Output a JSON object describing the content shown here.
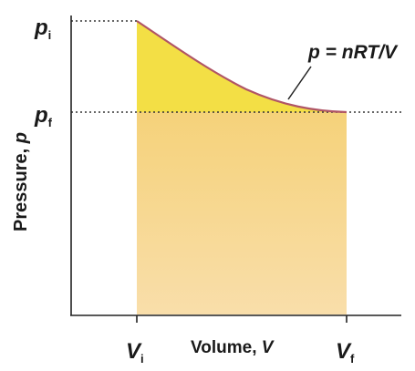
{
  "diagram": {
    "type": "pV isothermal expansion",
    "y_axis_label": {
      "text": "Pressure, ",
      "var": "p"
    },
    "x_axis_label": {
      "text": "Volume, ",
      "var": "V"
    },
    "y_ticks": [
      {
        "var": "p",
        "sub": "i"
      },
      {
        "var": "p",
        "sub": "f"
      }
    ],
    "x_ticks": [
      {
        "var": "V",
        "sub": "i"
      },
      {
        "var": "V",
        "sub": "f"
      }
    ],
    "curve_label": "p = nRT/V",
    "colors": {
      "work_area": "#f7d58a",
      "work_area_edge": "#f3cd80",
      "upper_region": "#f4e04a",
      "curve": "#b05566",
      "axes": "#222222"
    }
  }
}
